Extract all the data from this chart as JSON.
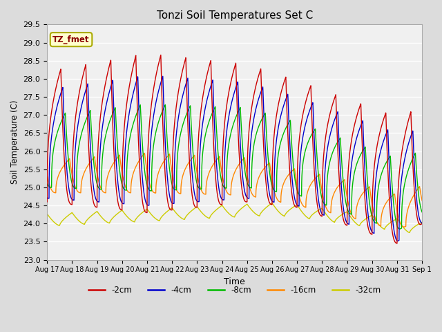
{
  "title": "Tonzi Soil Temperatures Set C",
  "xlabel": "Time",
  "ylabel": "Soil Temperature (C)",
  "annotation": "TZ_fmet",
  "annotation_color": "#8B0000",
  "annotation_bg": "#FFFFCC",
  "ylim": [
    23.0,
    29.5
  ],
  "yticks": [
    23.0,
    23.5,
    24.0,
    24.5,
    25.0,
    25.5,
    26.0,
    26.5,
    27.0,
    27.5,
    28.0,
    28.5,
    29.0,
    29.5
  ],
  "series_colors": [
    "#CC0000",
    "#0000CC",
    "#00BB00",
    "#FF8800",
    "#CCCC00"
  ],
  "series_labels": [
    "-2cm",
    "-4cm",
    "-8cm",
    "-16cm",
    "-32cm"
  ],
  "line_width": 1.0,
  "background_color": "#DCDCDC",
  "axes_bg_color": "#F0F0F0",
  "grid_color": "#FFFFFF",
  "xtick_days": [
    17,
    18,
    19,
    20,
    21,
    22,
    23,
    24,
    25,
    26,
    27,
    28,
    29,
    30,
    31,
    32
  ],
  "xtick_labels": [
    "Aug 17",
    "Aug 18",
    "Aug 19",
    "Aug 20",
    "Aug 21",
    "Aug 22",
    "Aug 23",
    "Aug 24",
    "Aug 25",
    "Aug 26",
    "Aug 27",
    "Aug 28",
    "Aug 29",
    "Aug 30",
    "Aug 31",
    "Sep 1"
  ]
}
